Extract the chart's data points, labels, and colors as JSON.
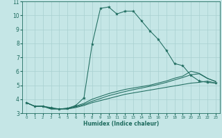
{
  "xlabel": "Humidex (Indice chaleur)",
  "xlim": [
    -0.5,
    23.5
  ],
  "ylim": [
    3,
    11
  ],
  "yticks": [
    3,
    4,
    5,
    6,
    7,
    8,
    9,
    10,
    11
  ],
  "xticks": [
    0,
    1,
    2,
    3,
    4,
    5,
    6,
    7,
    8,
    9,
    10,
    11,
    12,
    13,
    14,
    15,
    16,
    17,
    18,
    19,
    20,
    21,
    22,
    23
  ],
  "bg_color": "#c5e6e6",
  "grid_color": "#a8d0d0",
  "line_color": "#1e6b5e",
  "line1_x": [
    0,
    1,
    2,
    3,
    4,
    5,
    6,
    7,
    8,
    9,
    10,
    11,
    12,
    13,
    14,
    15,
    16,
    17,
    18,
    19,
    20,
    21,
    22,
    23
  ],
  "line1_y": [
    3.75,
    3.5,
    3.5,
    3.4,
    3.3,
    3.35,
    3.55,
    4.1,
    7.95,
    10.5,
    10.6,
    10.1,
    10.3,
    10.3,
    9.6,
    8.9,
    8.3,
    7.5,
    6.55,
    6.4,
    5.7,
    5.3,
    5.2,
    5.15
  ],
  "line2_x": [
    0,
    1,
    2,
    3,
    4,
    5,
    6,
    7,
    8,
    9,
    10,
    11,
    12,
    13,
    14,
    15,
    16,
    17,
    18,
    19,
    20,
    21,
    22,
    23
  ],
  "line2_y": [
    3.75,
    3.5,
    3.5,
    3.35,
    3.3,
    3.35,
    3.5,
    3.7,
    4.0,
    4.2,
    4.4,
    4.55,
    4.7,
    4.8,
    4.9,
    5.0,
    5.15,
    5.3,
    5.5,
    5.65,
    6.0,
    5.85,
    5.5,
    5.25
  ],
  "line3_x": [
    0,
    1,
    2,
    3,
    4,
    5,
    6,
    7,
    8,
    9,
    10,
    11,
    12,
    13,
    14,
    15,
    16,
    17,
    18,
    19,
    20,
    21,
    22,
    23
  ],
  "line3_y": [
    3.75,
    3.5,
    3.5,
    3.3,
    3.3,
    3.3,
    3.4,
    3.55,
    3.75,
    3.9,
    4.05,
    4.2,
    4.35,
    4.45,
    4.55,
    4.65,
    4.75,
    4.85,
    4.95,
    5.05,
    5.15,
    5.2,
    5.3,
    5.15
  ],
  "line4_x": [
    0,
    1,
    2,
    3,
    4,
    5,
    6,
    7,
    8,
    9,
    10,
    11,
    12,
    13,
    14,
    15,
    16,
    17,
    18,
    19,
    20,
    21,
    22,
    23
  ],
  "line4_y": [
    3.75,
    3.5,
    3.5,
    3.3,
    3.3,
    3.3,
    3.45,
    3.62,
    3.85,
    4.05,
    4.25,
    4.4,
    4.55,
    4.68,
    4.8,
    4.92,
    5.05,
    5.2,
    5.38,
    5.55,
    5.75,
    5.82,
    5.48,
    5.28
  ]
}
